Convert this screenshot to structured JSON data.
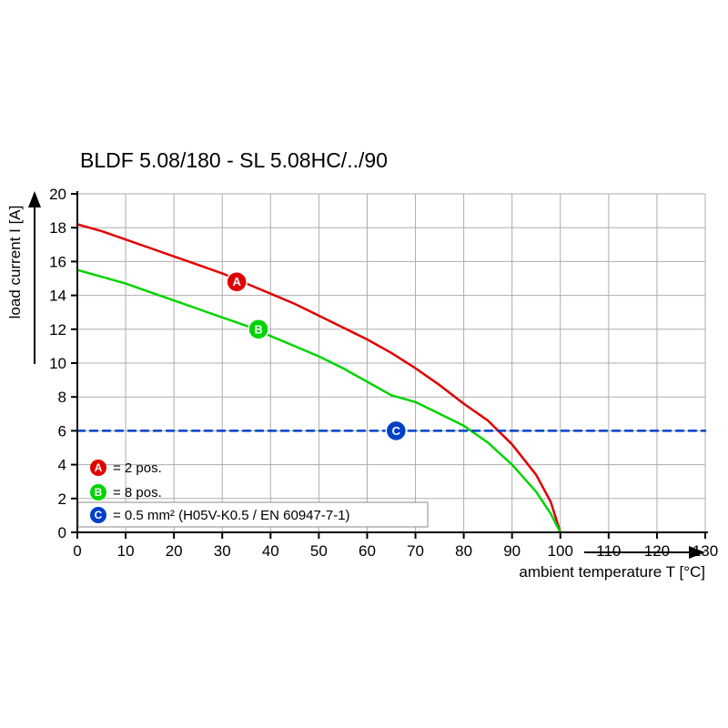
{
  "chart_data": {
    "type": "line",
    "title": "BLDF 5.08/180 - SL 5.08HC/../90",
    "xlabel": "ambient temperature T [°C]",
    "ylabel": "load current I [A]",
    "xlim": [
      0,
      130
    ],
    "ylim": [
      0,
      20
    ],
    "xticks": [
      0,
      10,
      20,
      30,
      40,
      50,
      60,
      70,
      80,
      90,
      100,
      110,
      120,
      130
    ],
    "yticks": [
      0,
      2,
      4,
      6,
      8,
      10,
      12,
      14,
      16,
      18,
      20
    ],
    "grid": true,
    "legend_position": "bottom-left-inside",
    "series": [
      {
        "name": "A",
        "label": "2 pos.",
        "color": "#e10000",
        "style": "solid",
        "marker": {
          "x": 33,
          "y": 14.8
        },
        "points": [
          [
            0,
            18.2
          ],
          [
            5,
            17.8
          ],
          [
            10,
            17.3
          ],
          [
            15,
            16.8
          ],
          [
            20,
            16.3
          ],
          [
            25,
            15.8
          ],
          [
            30,
            15.3
          ],
          [
            35,
            14.7
          ],
          [
            40,
            14.1
          ],
          [
            45,
            13.5
          ],
          [
            50,
            12.8
          ],
          [
            55,
            12.1
          ],
          [
            60,
            11.4
          ],
          [
            65,
            10.6
          ],
          [
            70,
            9.7
          ],
          [
            75,
            8.7
          ],
          [
            80,
            7.6
          ],
          [
            85,
            6.6
          ],
          [
            90,
            5.2
          ],
          [
            95,
            3.4
          ],
          [
            98,
            1.8
          ],
          [
            100,
            0
          ]
        ]
      },
      {
        "name": "B",
        "label": "8 pos.",
        "color": "#00d400",
        "style": "solid",
        "marker": {
          "x": 37.5,
          "y": 12
        },
        "points": [
          [
            0,
            15.5
          ],
          [
            5,
            15.1
          ],
          [
            10,
            14.7
          ],
          [
            15,
            14.2
          ],
          [
            20,
            13.7
          ],
          [
            25,
            13.2
          ],
          [
            30,
            12.7
          ],
          [
            35,
            12.2
          ],
          [
            40,
            11.6
          ],
          [
            45,
            11.0
          ],
          [
            50,
            10.4
          ],
          [
            55,
            9.7
          ],
          [
            60,
            8.9
          ],
          [
            65,
            8.1
          ],
          [
            70,
            7.7
          ],
          [
            75,
            7.0
          ],
          [
            80,
            6.3
          ],
          [
            85,
            5.3
          ],
          [
            90,
            4.0
          ],
          [
            95,
            2.4
          ],
          [
            98,
            1.1
          ],
          [
            100,
            0
          ]
        ]
      },
      {
        "name": "C",
        "label": "0.5 mm² (H05V-K0.5 / EN 60947-7-1)",
        "color": "#0040c8",
        "style": "dashed",
        "marker": {
          "x": 66,
          "y": 6
        },
        "points": [
          [
            0,
            6
          ],
          [
            130,
            6
          ]
        ]
      }
    ],
    "legend": [
      {
        "id": "A",
        "color": "#e10000",
        "text": "= 2 pos.",
        "boxed": false
      },
      {
        "id": "B",
        "color": "#00d400",
        "text": "= 8 pos.",
        "boxed": false
      },
      {
        "id": "C",
        "color": "#0040c8",
        "text": "= 0.5 mm² (H05V-K0.5 / EN 60947-7-1)",
        "boxed": true
      }
    ]
  }
}
